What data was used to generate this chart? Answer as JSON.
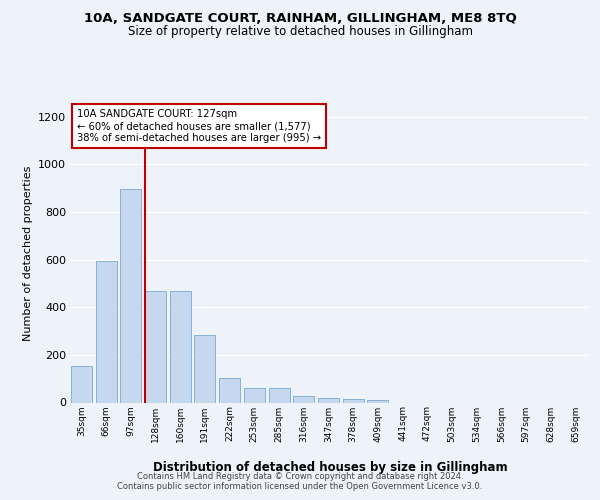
{
  "title1": "10A, SANDGATE COURT, RAINHAM, GILLINGHAM, ME8 8TQ",
  "title2": "Size of property relative to detached houses in Gillingham",
  "xlabel": "Distribution of detached houses by size in Gillingham",
  "ylabel": "Number of detached properties",
  "categories": [
    "35sqm",
    "66sqm",
    "97sqm",
    "128sqm",
    "160sqm",
    "191sqm",
    "222sqm",
    "253sqm",
    "285sqm",
    "316sqm",
    "347sqm",
    "378sqm",
    "409sqm",
    "441sqm",
    "472sqm",
    "503sqm",
    "534sqm",
    "566sqm",
    "597sqm",
    "628sqm",
    "659sqm"
  ],
  "values": [
    152,
    595,
    895,
    470,
    470,
    285,
    105,
    63,
    63,
    28,
    20,
    15,
    10,
    0,
    0,
    0,
    0,
    0,
    0,
    0,
    0
  ],
  "bar_color": "#c5d8f0",
  "bar_edge_color": "#7aaad0",
  "vline_color": "#c00000",
  "annotation_line1": "10A SANDGATE COURT: 127sqm",
  "annotation_line2": "← 60% of detached houses are smaller (1,577)",
  "annotation_line3": "38% of semi-detached houses are larger (995) →",
  "annotation_box_facecolor": "#ffffff",
  "annotation_box_edgecolor": "#c00000",
  "footer1": "Contains HM Land Registry data © Crown copyright and database right 2024.",
  "footer2": "Contains public sector information licensed under the Open Government Licence v3.0.",
  "ylim": [
    0,
    1250
  ],
  "yticks": [
    0,
    200,
    400,
    600,
    800,
    1000,
    1200
  ],
  "background_color": "#eef2f9",
  "grid_color": "#ffffff"
}
